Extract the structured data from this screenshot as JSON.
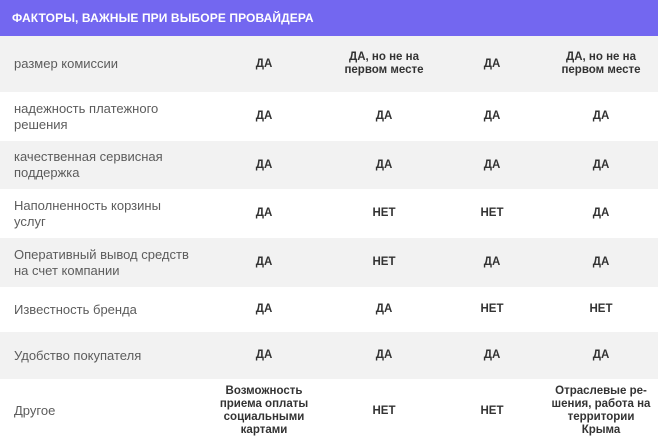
{
  "table": {
    "title": "ФАКТОРЫ, ВАЖНЫЕ ПРИ ВЫБОРЕ ПРОВАЙДЕРА",
    "rows": [
      {
        "label": "размер комиссии",
        "values": [
          "ДА",
          "ДА, но не на первом месте",
          "ДА",
          "ДА, но не на первом месте"
        ]
      },
      {
        "label": "надежность платежного решения",
        "values": [
          "ДА",
          "ДА",
          "ДА",
          "ДА"
        ]
      },
      {
        "label": "качественная сервисная поддержка",
        "values": [
          "ДА",
          "ДА",
          "ДА",
          "ДА"
        ]
      },
      {
        "label": "Наполненность корзины услуг",
        "values": [
          "ДА",
          "НЕТ",
          "НЕТ",
          "ДА"
        ]
      },
      {
        "label": "Оперативный вывод средств на счет компании",
        "values": [
          "ДА",
          "НЕТ",
          "ДА",
          "ДА"
        ]
      },
      {
        "label": "Известность бренда",
        "values": [
          "ДА",
          "ДА",
          "НЕТ",
          "НЕТ"
        ]
      },
      {
        "label": "Удобство покупателя",
        "values": [
          "ДА",
          "ДА",
          "ДА",
          "ДА"
        ]
      },
      {
        "label": "Другое",
        "values": [
          "Возможность приема оплаты социальными картами",
          "НЕТ",
          "НЕТ",
          "Отраслевые ре-шения, работа на территории Крыма"
        ]
      }
    ]
  },
  "colors": {
    "header_bg": "#7367f0",
    "header_text": "#ffffff",
    "stripe": "#f2f2f2",
    "label_text": "#5c5c5c",
    "value_text": "#333333"
  }
}
